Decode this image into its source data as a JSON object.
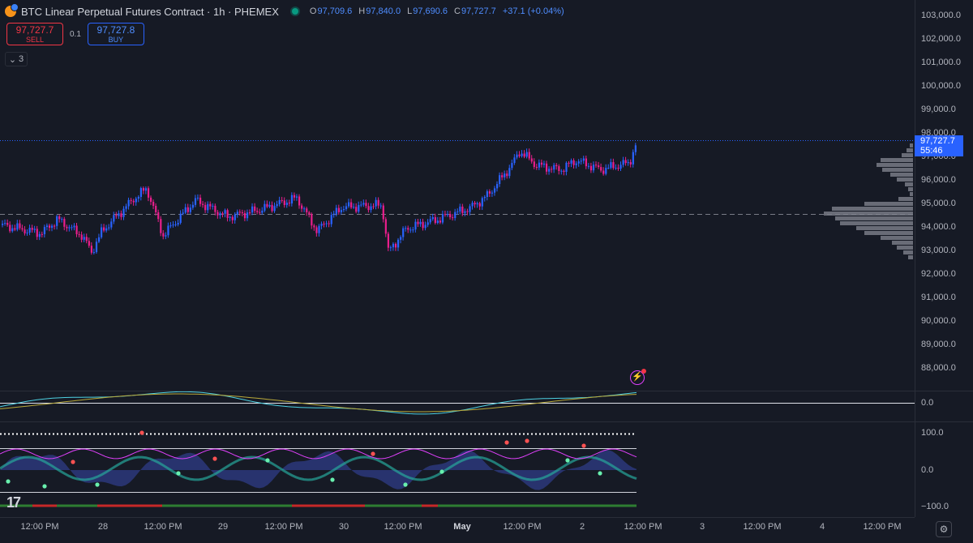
{
  "header": {
    "title": "BTC Linear Perpetual Futures Contract · 1h · PHEMEX",
    "ohlc": [
      {
        "k": "O",
        "v": "97,709.6"
      },
      {
        "k": "H",
        "v": "97,840.0"
      },
      {
        "k": "L",
        "v": "97,690.6"
      },
      {
        "k": "C",
        "v": "97,727.7"
      }
    ],
    "change": "+37.1 (+0.04%)"
  },
  "trade": {
    "sell_price": "97,727.7",
    "sell_label": "SELL",
    "spread": "0.1",
    "buy_price": "97,727.8",
    "buy_label": "BUY"
  },
  "collapse_count": "3",
  "last_price": {
    "price": "97,727.7",
    "countdown": "55:46"
  },
  "price_axis": [
    "103,000.0",
    "102,000.0",
    "101,000.0",
    "100,000.0",
    "99,000.0",
    "98,000.0",
    "97,000.0",
    "96,000.0",
    "95,000.0",
    "94,000.0",
    "93,000.0",
    "92,000.0",
    "91,000.0",
    "90,000.0",
    "89,000.0",
    "88,000.0"
  ],
  "osc1_axis": [
    "0.0"
  ],
  "osc2_axis": [
    "100.0",
    "0.0",
    "−100.0"
  ],
  "time_axis": [
    {
      "label": "12:00 PM",
      "bold": false
    },
    {
      "label": "28",
      "bold": false
    },
    {
      "label": "12:00 PM",
      "bold": false
    },
    {
      "label": "29",
      "bold": false
    },
    {
      "label": "12:00 PM",
      "bold": false
    },
    {
      "label": "30",
      "bold": false
    },
    {
      "label": "12:00 PM",
      "bold": false
    },
    {
      "label": "May",
      "bold": true
    },
    {
      "label": "12:00 PM",
      "bold": false
    },
    {
      "label": "2",
      "bold": false
    },
    {
      "label": "12:00 PM",
      "bold": false
    },
    {
      "label": "3",
      "bold": false
    },
    {
      "label": "12:00 PM",
      "bold": false
    },
    {
      "label": "4",
      "bold": false
    },
    {
      "label": "12:00 PM",
      "bold": false
    }
  ],
  "colors": {
    "up": "#2962ff",
    "down": "#e91e8c",
    "bg": "#161a25",
    "grid": "#2a2e39"
  },
  "icons": {
    "settings": "gear-icon",
    "alert": "lightning-icon",
    "logo": "tradingview-logo"
  }
}
